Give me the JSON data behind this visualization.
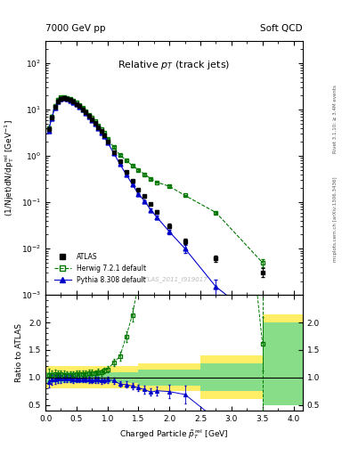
{
  "title_left": "7000 GeV pp",
  "title_right": "Soft QCD",
  "plot_title": "Relative $p_T$ (track jets)",
  "xlabel": "Charged Particle $\\tilde{p}_T^{\\,\\mathrm{rel}}$ [GeV]",
  "ylabel_main": "(1/Njet)dN/dp$_T^{\\mathrm{rel}}$ [GeV$^{-1}$]",
  "ylabel_ratio": "Ratio to ATLAS",
  "right_label": "mcplots.cern.ch [arXiv:1306.3436]",
  "right_label2": "Rivet 3.1.10; ≥ 3.4M events",
  "watermark": "ATLAS_2011_I919017",
  "xlim": [
    0,
    4.15
  ],
  "ylim_main": [
    0.001,
    300
  ],
  "ylim_ratio": [
    0.4,
    2.5
  ],
  "atlas_x": [
    0.05,
    0.1,
    0.15,
    0.2,
    0.25,
    0.3,
    0.35,
    0.4,
    0.45,
    0.5,
    0.55,
    0.6,
    0.65,
    0.7,
    0.75,
    0.8,
    0.85,
    0.9,
    0.95,
    1.0,
    1.1,
    1.2,
    1.3,
    1.4,
    1.5,
    1.6,
    1.7,
    1.8,
    2.0,
    2.25,
    2.75,
    3.5
  ],
  "atlas_y": [
    3.8,
    6.8,
    11.2,
    15.2,
    17.2,
    17.8,
    17.2,
    16.2,
    14.8,
    13.2,
    11.8,
    10.2,
    8.7,
    7.2,
    6.1,
    5.1,
    4.1,
    3.4,
    2.75,
    2.05,
    1.22,
    0.76,
    0.46,
    0.29,
    0.185,
    0.135,
    0.093,
    0.062,
    0.031,
    0.0145,
    0.0062,
    0.0031
  ],
  "atlas_yerr": [
    0.25,
    0.4,
    0.6,
    0.8,
    0.8,
    0.9,
    0.8,
    0.7,
    0.6,
    0.55,
    0.5,
    0.4,
    0.35,
    0.3,
    0.25,
    0.2,
    0.16,
    0.13,
    0.1,
    0.08,
    0.05,
    0.032,
    0.02,
    0.013,
    0.009,
    0.007,
    0.005,
    0.004,
    0.003,
    0.0018,
    0.001,
    0.0007
  ],
  "herwig_x": [
    0.05,
    0.1,
    0.15,
    0.2,
    0.25,
    0.3,
    0.35,
    0.4,
    0.45,
    0.5,
    0.55,
    0.6,
    0.65,
    0.7,
    0.75,
    0.8,
    0.85,
    0.9,
    0.95,
    1.0,
    1.1,
    1.2,
    1.3,
    1.4,
    1.5,
    1.6,
    1.7,
    1.8,
    2.0,
    2.25,
    2.75,
    3.5
  ],
  "herwig_y": [
    4.0,
    7.1,
    11.8,
    16.0,
    18.2,
    18.7,
    18.0,
    17.0,
    15.5,
    14.0,
    12.5,
    10.9,
    9.3,
    7.8,
    6.6,
    5.5,
    4.5,
    3.7,
    3.1,
    2.35,
    1.55,
    1.05,
    0.8,
    0.62,
    0.5,
    0.4,
    0.32,
    0.27,
    0.22,
    0.14,
    0.06,
    0.005
  ],
  "herwig_yerr": [
    0.3,
    0.4,
    0.7,
    0.8,
    0.9,
    0.9,
    0.8,
    0.7,
    0.6,
    0.5,
    0.45,
    0.38,
    0.32,
    0.27,
    0.22,
    0.18,
    0.15,
    0.12,
    0.1,
    0.08,
    0.055,
    0.038,
    0.028,
    0.022,
    0.018,
    0.014,
    0.012,
    0.01,
    0.009,
    0.006,
    0.003,
    0.001
  ],
  "pythia_x": [
    0.05,
    0.1,
    0.15,
    0.2,
    0.25,
    0.3,
    0.35,
    0.4,
    0.45,
    0.5,
    0.55,
    0.6,
    0.65,
    0.7,
    0.75,
    0.8,
    0.85,
    0.9,
    0.95,
    1.0,
    1.1,
    1.2,
    1.3,
    1.4,
    1.5,
    1.6,
    1.7,
    1.8,
    2.0,
    2.25,
    2.75,
    3.5
  ],
  "pythia_y": [
    3.5,
    6.5,
    10.8,
    14.8,
    16.8,
    17.5,
    16.8,
    15.8,
    14.3,
    12.8,
    11.4,
    9.9,
    8.4,
    6.9,
    5.8,
    4.88,
    3.92,
    3.2,
    2.62,
    1.97,
    1.15,
    0.67,
    0.4,
    0.245,
    0.15,
    0.105,
    0.068,
    0.047,
    0.023,
    0.01,
    0.0015,
    0.00025
  ],
  "pythia_yerr": [
    0.3,
    0.5,
    0.7,
    0.9,
    1.0,
    1.0,
    0.9,
    0.8,
    0.7,
    0.6,
    0.5,
    0.42,
    0.35,
    0.28,
    0.22,
    0.18,
    0.15,
    0.12,
    0.1,
    0.08,
    0.05,
    0.03,
    0.018,
    0.012,
    0.009,
    0.007,
    0.005,
    0.004,
    0.003,
    0.002,
    0.0006,
    0.0002
  ],
  "atlas_color": "#000000",
  "herwig_color": "#007700",
  "pythia_color": "#0000cc",
  "band_yellow": "#ffee66",
  "band_green": "#88dd88",
  "ratio_band_edges": [
    0.0,
    1.5,
    2.5,
    3.5,
    4.15
  ],
  "ratio_green_lo": [
    0.9,
    0.85,
    0.75,
    0.5
  ],
  "ratio_green_hi": [
    1.1,
    1.15,
    1.25,
    2.0
  ],
  "ratio_yellow_lo": [
    0.8,
    0.75,
    0.6,
    0.5
  ],
  "ratio_yellow_hi": [
    1.2,
    1.25,
    1.4,
    2.15
  ],
  "dashed_vline_x": 3.5,
  "yticks_ratio": [
    0.5,
    1.0,
    1.5,
    2.0
  ]
}
